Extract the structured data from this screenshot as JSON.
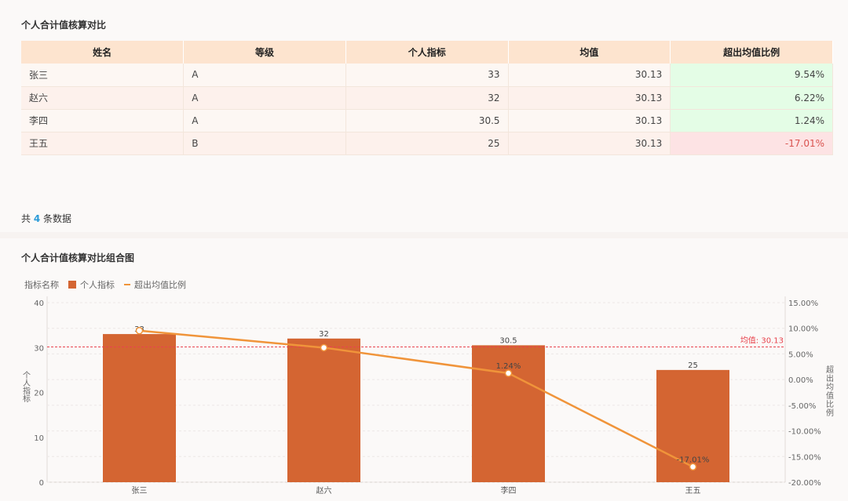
{
  "table_section": {
    "title": "个人合计值核算对比",
    "columns": [
      "姓名",
      "等级",
      "个人指标",
      "均值",
      "超出均值比例"
    ],
    "rows": [
      {
        "name": "张三",
        "grade": "A",
        "value": "33",
        "mean": "30.13",
        "ratio": "9.54%",
        "status": "pos"
      },
      {
        "name": "赵六",
        "grade": "A",
        "value": "32",
        "mean": "30.13",
        "ratio": "6.22%",
        "status": "pos"
      },
      {
        "name": "李四",
        "grade": "A",
        "value": "30.5",
        "mean": "30.13",
        "ratio": "1.24%",
        "status": "pos"
      },
      {
        "name": "王五",
        "grade": "B",
        "value": "25",
        "mean": "30.13",
        "ratio": "-17.01%",
        "status": "neg"
      }
    ],
    "footer_prefix": "共",
    "footer_count": "4",
    "footer_suffix": "条数据"
  },
  "chart_section": {
    "title": "个人合计值核算对比组合图",
    "legend_title": "指标名称",
    "legend_bar": "个人指标",
    "legend_line": "超出均值比例"
  },
  "colors": {
    "bar": "#d46532",
    "line": "#f0943a",
    "mean_line": "#e8434d",
    "positive_bg": "#e4fde6",
    "negative_bg": "#fde3e4"
  },
  "chart_data": {
    "type": "bar",
    "categories": [
      "张三",
      "赵六",
      "李四",
      "王五"
    ],
    "series": [
      {
        "name": "个人指标",
        "type": "bar",
        "axis": "left",
        "values": [
          33,
          32,
          30.5,
          25
        ],
        "labels": [
          "33",
          "32",
          "30.5",
          "25"
        ]
      },
      {
        "name": "超出均值比例",
        "type": "line",
        "axis": "right",
        "values": [
          9.54,
          6.22,
          1.24,
          -17.01
        ],
        "labels": [
          "",
          "",
          "1.24%",
          "-17.01%"
        ]
      }
    ],
    "y_left": {
      "label": "个人指标",
      "range": [
        0,
        40
      ],
      "ticks": [
        "0",
        "10",
        "20",
        "30",
        "40"
      ]
    },
    "y_right": {
      "label": "超出均值比例",
      "range": [
        -20,
        15
      ],
      "ticks": [
        "15.00%",
        "10.00%",
        "5.00%",
        "0.00%",
        "-5.00%",
        "-10.00%",
        "-15.00%",
        "-20.00%"
      ]
    },
    "reference_line": {
      "value": 30.13,
      "label": "均值: 30.13"
    },
    "grid": true,
    "legend_position": "top-left"
  }
}
